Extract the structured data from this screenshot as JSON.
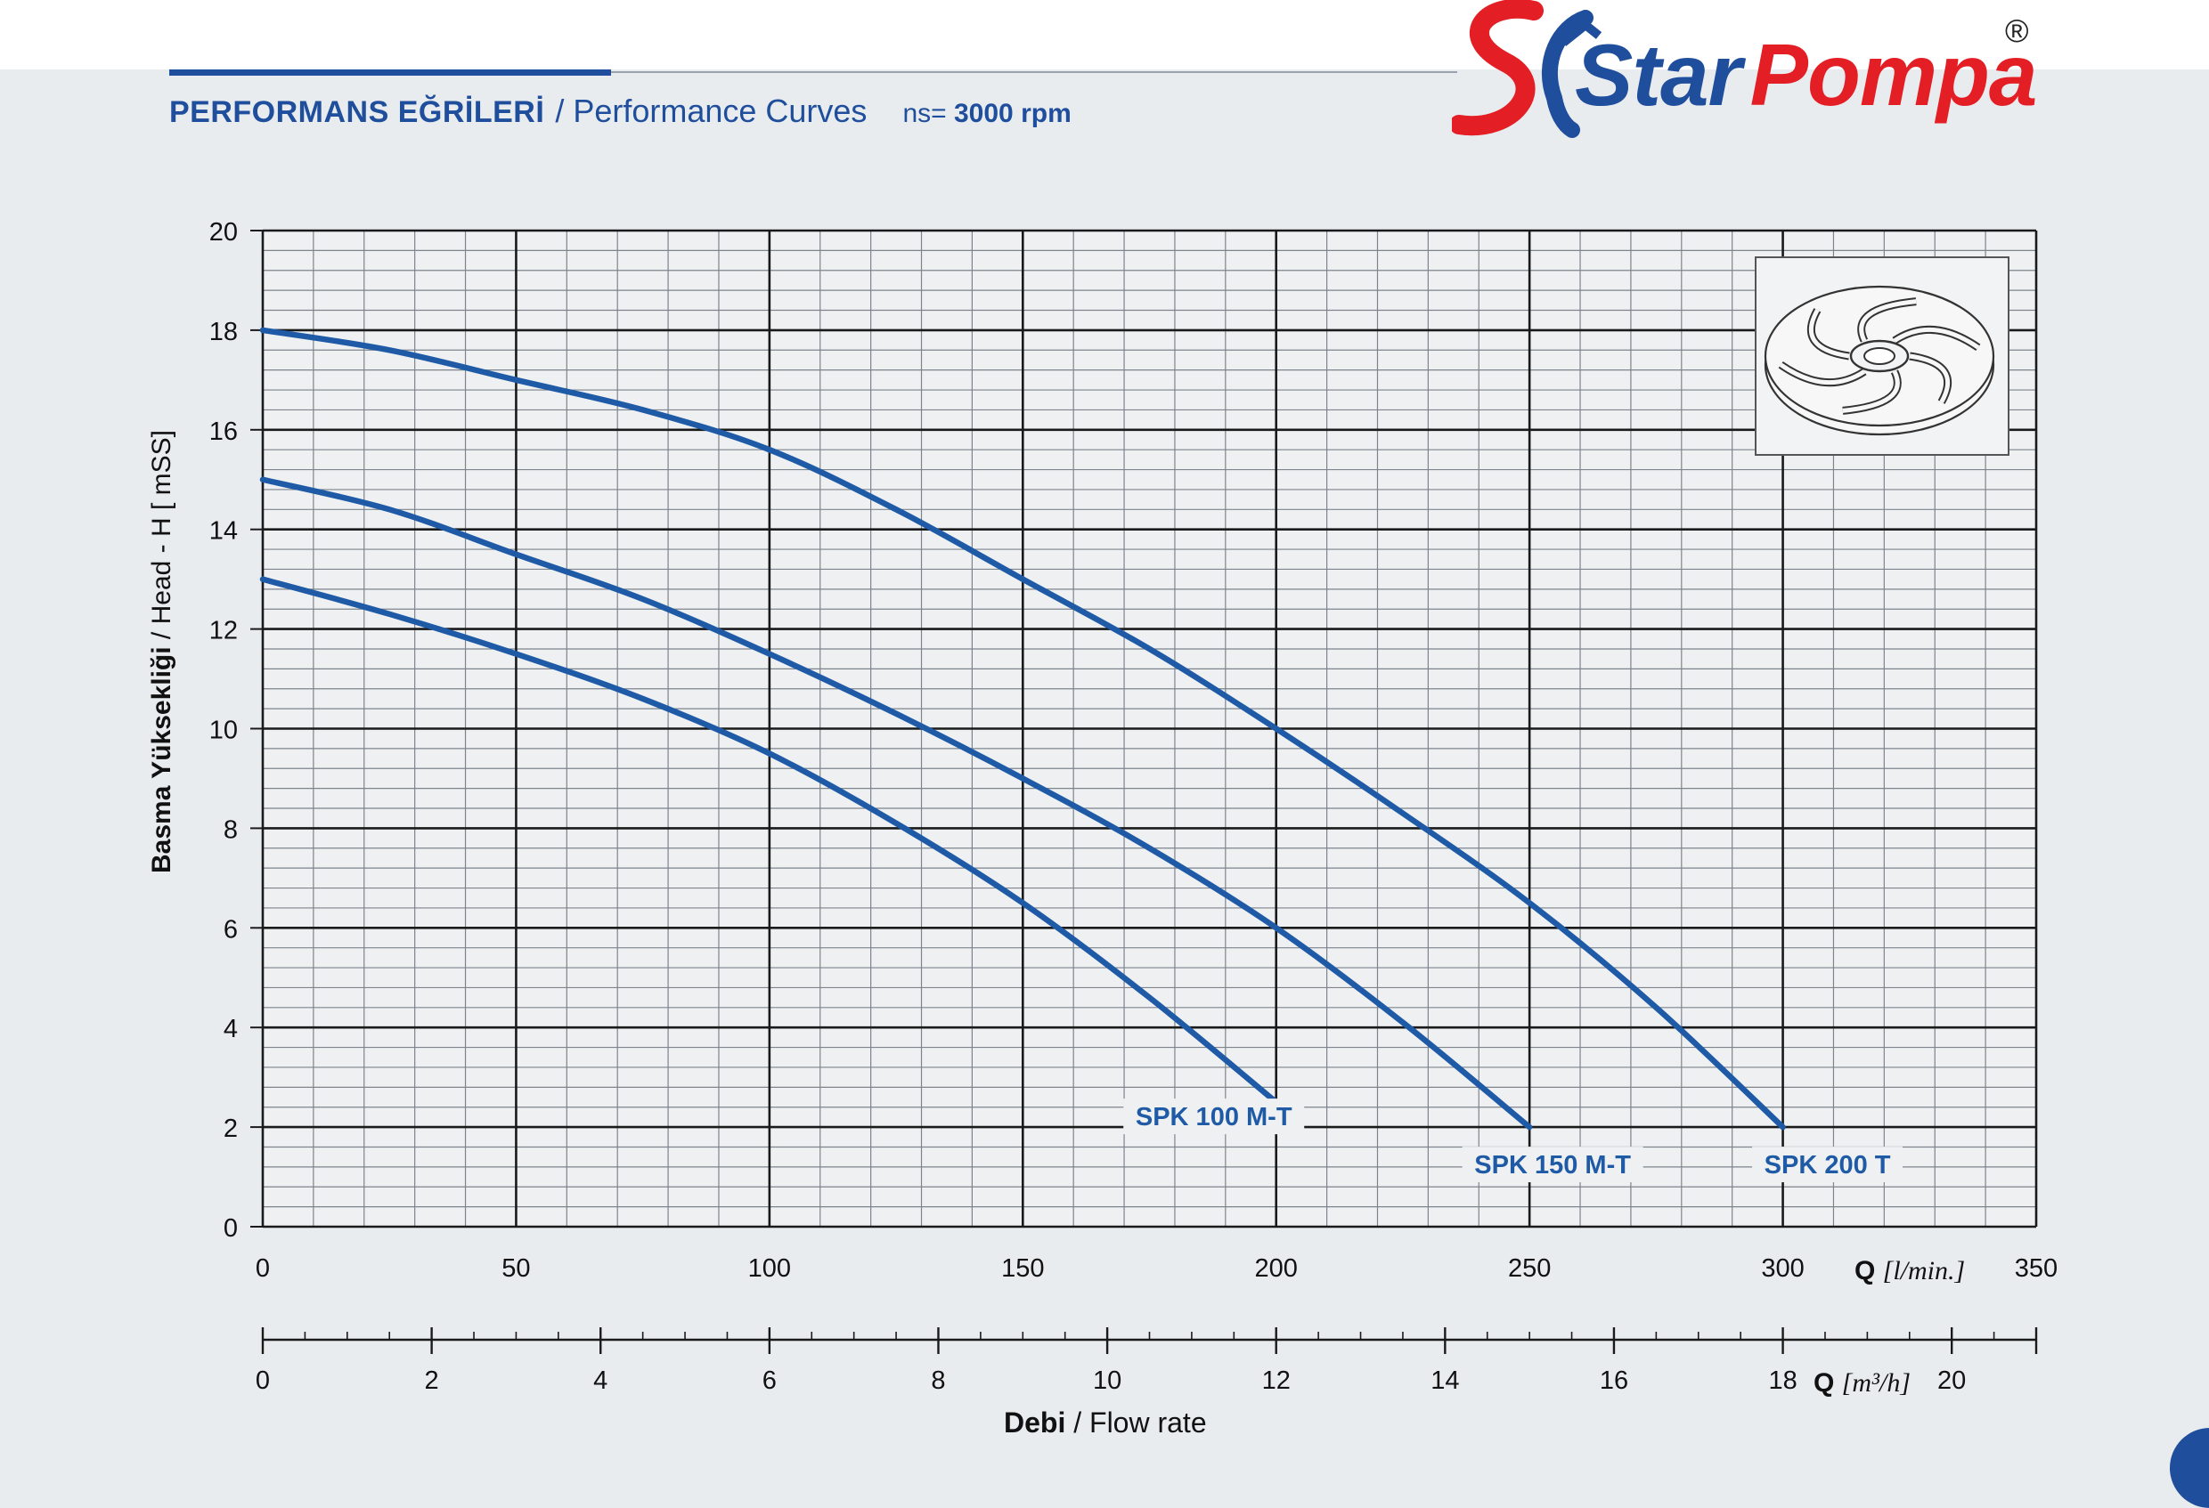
{
  "header": {
    "title_tr": "PERFORMANS EĞRİLERİ",
    "title_en": "/ Performance Curves",
    "ns_label": "ns=",
    "ns_value": "3000 rpm"
  },
  "brand": {
    "name_part1": "Star",
    "name_part2": "Pompa",
    "registered": "®",
    "color_blue": "#1f4e9c",
    "color_red": "#e31e24"
  },
  "icons": [
    "star-pompa-logo-icon",
    "impeller-icon"
  ],
  "chart_data": {
    "type": "line",
    "ylabel_tr": "Basma Yüksekliği",
    "ylabel_en": "/ Head - H [ mSS]",
    "xlabel_tr": "Debi",
    "xlabel_en": "/ Flow rate",
    "x_axis_label": "Q",
    "x_unit": "[l/min.]",
    "x2_axis_label": "Q",
    "x2_unit": "[m³/h]",
    "xlim": [
      0,
      350
    ],
    "ylim": [
      0,
      20
    ],
    "x2lim": [
      0,
      21
    ],
    "x_ticks": [
      0,
      50,
      100,
      150,
      200,
      250,
      300,
      350
    ],
    "y_ticks": [
      0,
      2,
      4,
      6,
      8,
      10,
      12,
      14,
      16,
      18,
      20
    ],
    "x2_ticks": [
      0,
      2,
      4,
      6,
      8,
      10,
      12,
      14,
      16,
      18,
      20
    ],
    "grid": true,
    "line_color": "#1f5aa6",
    "series": [
      {
        "name": "SPK 100 M-T",
        "x": [
          0,
          25,
          50,
          75,
          100,
          125,
          150,
          175,
          200
        ],
        "y": [
          13.0,
          12.3,
          11.5,
          10.6,
          9.5,
          8.1,
          6.5,
          4.6,
          2.5
        ]
      },
      {
        "name": "SPK 150 M-T",
        "x": [
          0,
          25,
          50,
          75,
          100,
          125,
          150,
          175,
          200,
          225,
          250
        ],
        "y": [
          15.0,
          14.4,
          13.5,
          12.6,
          11.5,
          10.3,
          9.0,
          7.6,
          6.0,
          4.1,
          2.0
        ]
      },
      {
        "name": "SPK 200 T",
        "x": [
          0,
          25,
          50,
          75,
          100,
          125,
          150,
          175,
          200,
          225,
          250,
          275,
          300
        ],
        "y": [
          18.0,
          17.6,
          17.0,
          16.4,
          15.6,
          14.4,
          13.0,
          11.6,
          10.0,
          8.3,
          6.5,
          4.4,
          2.0
        ]
      }
    ]
  }
}
